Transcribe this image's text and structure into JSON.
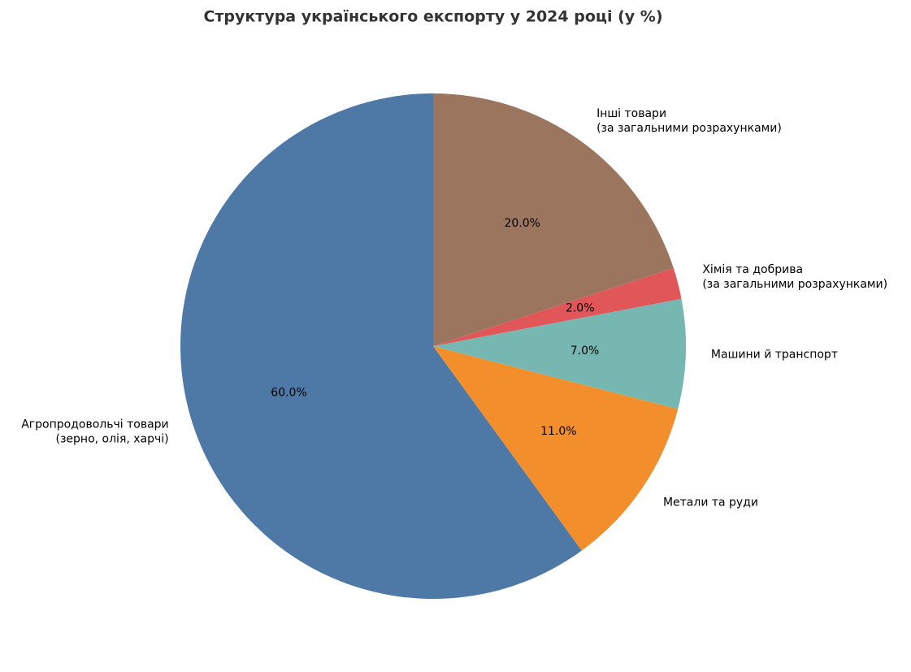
{
  "chart_data": {
    "type": "pie",
    "title": "Структура українського експорту у 2024 році (у %)",
    "categories": [
      "Агропродовольчі товари\n(зерно, олія, харчі)",
      "Метали та руди",
      "Машини й транспорт",
      "Хімія та добрива\n(за загальними розрахунками)",
      "Інші товари\n(за загальними розрахунками)"
    ],
    "values": [
      60,
      11,
      7,
      2,
      20
    ],
    "value_labels": [
      "60.0%",
      "11.0%",
      "7.0%",
      "2.0%",
      "20.0%"
    ],
    "colors": [
      "#4e79a7",
      "#f28e2b",
      "#76b7b2",
      "#e15759",
      "#9c755f"
    ]
  }
}
